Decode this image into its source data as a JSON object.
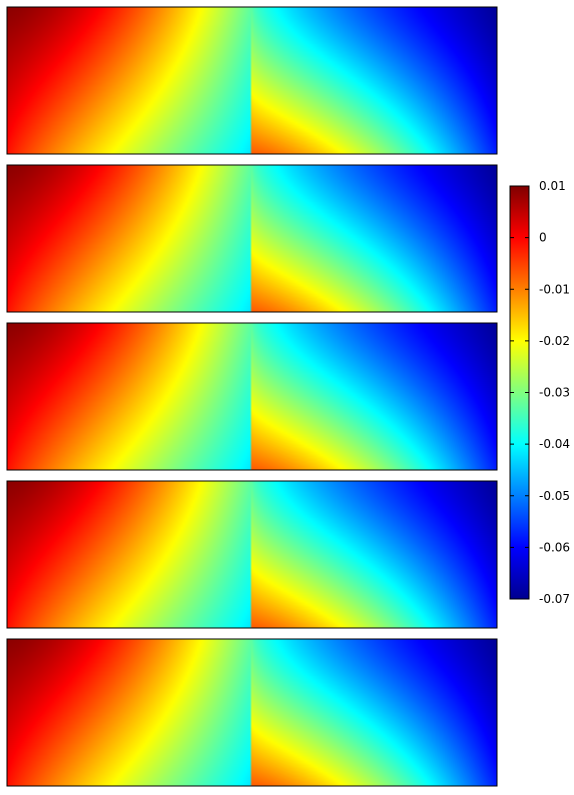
{
  "chart_data": {
    "type": "heatmap",
    "title": "",
    "xlabel": "",
    "ylabel": "",
    "colormap": "jet",
    "colorbar": {
      "range": [
        -0.07,
        0.01
      ],
      "tick_values": [
        0.01,
        0,
        -0.01,
        -0.02,
        -0.03,
        -0.04,
        -0.05,
        -0.06,
        -0.07
      ],
      "tick_labels": [
        "0.01",
        "0",
        "-0.01",
        "-0.02",
        "-0.03",
        "-0.04",
        "-0.05",
        "-0.06",
        "-0.07"
      ],
      "placement": "right"
    },
    "panel_count": 5,
    "field_levels": {
      "top_left_corner": 0.009,
      "left_edge": -0.001,
      "bottom_left_center": -0.042,
      "center_band": -0.033,
      "bottom_right_center": -0.007,
      "top_right_corner": -0.068,
      "right_edge": -0.058
    }
  }
}
